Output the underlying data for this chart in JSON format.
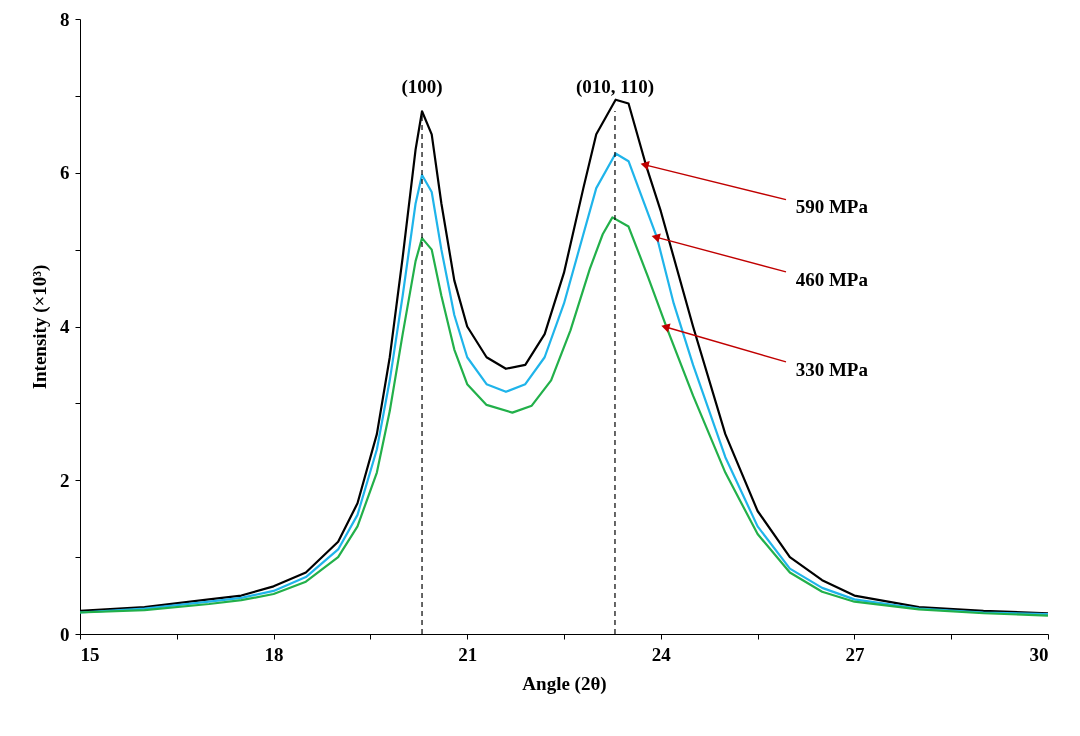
{
  "chart_data": {
    "type": "line",
    "xlabel": "Angle (2θ)",
    "ylabel": "Intensity (×10³)",
    "xlim": [
      15,
      30
    ],
    "xticks": [
      15,
      {
        "value": 16.5,
        "label": null
      },
      18,
      {
        "value": 19.5,
        "label": null
      },
      21,
      {
        "value": 22.5,
        "label": null
      },
      24,
      {
        "value": 25.5,
        "label": null
      },
      27,
      {
        "value": 28.5,
        "label": null
      },
      30
    ],
    "ylim": [
      0,
      8
    ],
    "yticks": [
      0,
      {
        "value": 1,
        "label": null
      },
      2,
      {
        "value": 3,
        "label": null
      },
      4,
      {
        "value": 5,
        "label": null
      },
      6,
      {
        "value": 7,
        "label": null
      },
      8
    ],
    "grid": false,
    "legend": false,
    "marker": "none",
    "line_style": "solid",
    "series": [
      {
        "color": "#000000",
        "x": [
          15,
          16,
          17,
          17.5,
          18,
          18.5,
          19,
          19.3,
          19.6,
          19.8,
          20,
          20.2,
          20.3,
          20.45,
          20.6,
          20.8,
          21,
          21.3,
          21.6,
          21.9,
          22.2,
          22.5,
          22.8,
          23,
          23.3,
          23.5,
          23.77,
          24,
          24.5,
          25,
          25.5,
          26,
          26.5,
          27,
          28,
          29,
          30
        ],
        "values": [
          0.3,
          0.35,
          0.45,
          0.5,
          0.62,
          0.8,
          1.2,
          1.7,
          2.6,
          3.6,
          4.9,
          6.3,
          6.8,
          6.5,
          5.6,
          4.6,
          4.0,
          3.6,
          3.45,
          3.5,
          3.9,
          4.7,
          5.8,
          6.5,
          6.95,
          6.9,
          6.1,
          5.5,
          4.0,
          2.6,
          1.6,
          1.0,
          0.7,
          0.5,
          0.35,
          0.3,
          0.27
        ]
      },
      {
        "color": "#1fb4ea",
        "x": [
          15,
          16,
          17,
          17.5,
          18,
          18.5,
          19,
          19.3,
          19.6,
          19.8,
          20,
          20.2,
          20.3,
          20.45,
          20.6,
          20.8,
          21,
          21.3,
          21.6,
          21.9,
          22.2,
          22.5,
          22.8,
          23,
          23.3,
          23.5,
          23.7,
          23.94,
          24.2,
          24.5,
          25,
          25.5,
          26,
          26.5,
          27,
          28,
          29,
          30
        ],
        "values": [
          0.28,
          0.33,
          0.42,
          0.47,
          0.56,
          0.74,
          1.1,
          1.55,
          2.4,
          3.3,
          4.4,
          5.6,
          5.97,
          5.75,
          5.0,
          4.15,
          3.6,
          3.25,
          3.15,
          3.25,
          3.6,
          4.3,
          5.2,
          5.8,
          6.25,
          6.15,
          5.7,
          5.16,
          4.3,
          3.5,
          2.3,
          1.4,
          0.85,
          0.6,
          0.45,
          0.33,
          0.28,
          0.26
        ]
      },
      {
        "color": "#22b04a",
        "x": [
          15,
          16,
          17,
          17.5,
          18,
          18.5,
          19,
          19.3,
          19.6,
          19.8,
          20,
          20.2,
          20.3,
          20.45,
          20.6,
          20.8,
          21,
          21.3,
          21.7,
          22,
          22.3,
          22.6,
          22.9,
          23.1,
          23.25,
          23.5,
          23.8,
          24.09,
          24.5,
          25,
          25.5,
          26,
          26.5,
          27,
          28,
          29,
          30
        ],
        "values": [
          0.28,
          0.31,
          0.39,
          0.44,
          0.52,
          0.68,
          1.0,
          1.4,
          2.1,
          2.9,
          3.9,
          4.85,
          5.15,
          5.0,
          4.4,
          3.7,
          3.25,
          2.98,
          2.88,
          2.97,
          3.3,
          3.95,
          4.75,
          5.2,
          5.42,
          5.3,
          4.65,
          3.99,
          3.1,
          2.1,
          1.3,
          0.8,
          0.55,
          0.42,
          0.32,
          0.27,
          0.24
        ]
      }
    ],
    "ref_lines": [
      {
        "axis": "x",
        "value": 20.3,
        "line_style": "dashed",
        "color": "#000000"
      },
      {
        "axis": "x",
        "value": 23.29,
        "line_style": "dashed",
        "color": "#000000"
      }
    ],
    "annotations": [
      "(100)",
      "(010, 110)",
      {
        "text": "590 MPa",
        "x": 23.77,
        "y": 6.1
      },
      {
        "text": "460 MPa",
        "x": 23.94,
        "y": 5.16
      },
      {
        "text": "330 MPa",
        "x": 24.09,
        "y": 3.99
      }
    ]
  }
}
